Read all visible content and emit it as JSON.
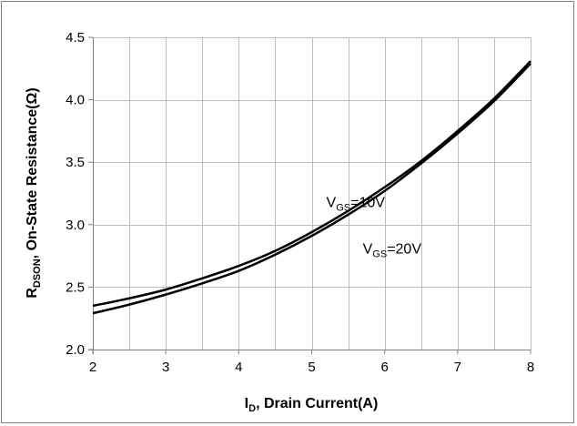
{
  "chart_data": {
    "type": "line",
    "title": "",
    "xlabel": {
      "main": "I",
      "sub": "D",
      "rest": ", Drain Current(A)"
    },
    "ylabel": {
      "main": "R",
      "sub": "DSON",
      "rest": ", On-State Resistance(Ω)"
    },
    "xlim": [
      2,
      8
    ],
    "ylim": [
      2.0,
      4.5
    ],
    "x_ticks": [
      "2",
      "3",
      "4",
      "5",
      "6",
      "7",
      "8"
    ],
    "y_ticks": [
      "2.0",
      "2.5",
      "3.0",
      "3.5",
      "4.0",
      "4.5"
    ],
    "x_grid_step": 0.5,
    "y_grid_step": 0.5,
    "grid": true,
    "series": [
      {
        "name": "VGS=10V",
        "color": "#000000",
        "x": [
          2,
          2.5,
          3,
          3.5,
          4,
          4.5,
          5,
          5.5,
          6,
          6.5,
          7,
          7.5,
          8
        ],
        "y": [
          2.35,
          2.41,
          2.48,
          2.57,
          2.67,
          2.79,
          2.94,
          3.11,
          3.3,
          3.51,
          3.75,
          4.01,
          4.31
        ]
      },
      {
        "name": "VGS=20V",
        "color": "#000000",
        "x": [
          2,
          2.5,
          3,
          3.5,
          4,
          4.5,
          5,
          5.5,
          6,
          6.5,
          7,
          7.5,
          8
        ],
        "y": [
          2.29,
          2.36,
          2.44,
          2.53,
          2.63,
          2.76,
          2.91,
          3.08,
          3.27,
          3.49,
          3.73,
          3.99,
          4.29
        ]
      }
    ],
    "annotations": [
      {
        "main": "V",
        "sub": "GS",
        "rest": "=10V",
        "x": 5.2,
        "y": 3.14
      },
      {
        "main": "V",
        "sub": "GS",
        "rest": "=20V",
        "x": 5.7,
        "y": 2.77
      }
    ]
  }
}
